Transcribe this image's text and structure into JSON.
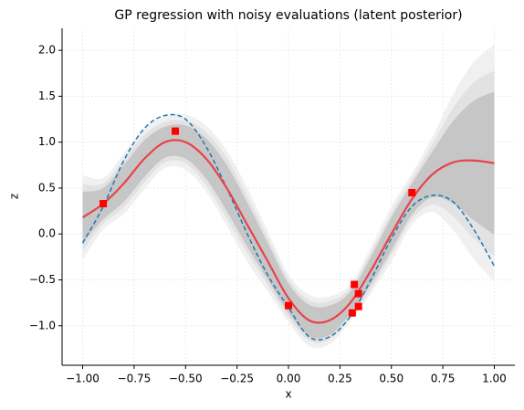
{
  "chart_data": {
    "type": "line",
    "title": "GP regression with noisy evaluations (latent posterior)",
    "xlabel": "x",
    "ylabel": "z",
    "xlim": [
      -1.1,
      1.1
    ],
    "ylim": [
      -1.43,
      2.24
    ],
    "xticks": [
      {
        "value": -1.0,
        "label": "−1.00"
      },
      {
        "value": -0.75,
        "label": "−0.75"
      },
      {
        "value": -0.5,
        "label": "−0.50"
      },
      {
        "value": -0.25,
        "label": "−0.25"
      },
      {
        "value": 0.0,
        "label": "0.00"
      },
      {
        "value": 0.25,
        "label": "0.25"
      },
      {
        "value": 0.5,
        "label": "0.50"
      },
      {
        "value": 0.75,
        "label": "0.75"
      },
      {
        "value": 1.0,
        "label": "1.00"
      }
    ],
    "yticks": [
      {
        "value": -1.0,
        "label": "−1.0"
      },
      {
        "value": -0.5,
        "label": "−0.5"
      },
      {
        "value": 0.0,
        "label": "0.0"
      },
      {
        "value": 0.5,
        "label": "0.5"
      },
      {
        "value": 1.0,
        "label": "1.0"
      },
      {
        "value": 1.5,
        "label": "1.5"
      },
      {
        "value": 2.0,
        "label": "2.0"
      }
    ],
    "grid": true,
    "x": [
      -1.0,
      -0.9,
      -0.8,
      -0.7,
      -0.6,
      -0.5,
      -0.4,
      -0.3,
      -0.2,
      -0.1,
      0.0,
      0.1,
      0.2,
      0.3,
      0.4,
      0.5,
      0.6,
      0.7,
      0.8,
      0.9,
      1.0
    ],
    "bands": [
      {
        "color": "#f0f0f0",
        "lower": [
          -0.28,
          0.05,
          0.22,
          0.49,
          0.72,
          0.7,
          0.46,
          0.09,
          -0.3,
          -0.63,
          -0.96,
          -1.22,
          -1.2,
          -0.95,
          -0.65,
          -0.3,
          0.1,
          0.24,
          0.04,
          -0.27,
          -0.52
        ],
        "upper": [
          0.64,
          0.61,
          0.88,
          1.15,
          1.28,
          1.3,
          1.18,
          0.91,
          0.5,
          0.03,
          -0.44,
          -0.66,
          -0.68,
          -0.55,
          -0.15,
          0.3,
          0.66,
          1.06,
          1.52,
          1.87,
          2.06
        ]
      },
      {
        "color": "#e2e2e2",
        "lower": [
          -0.18,
          0.11,
          0.29,
          0.56,
          0.78,
          0.77,
          0.53,
          0.17,
          -0.21,
          -0.56,
          -0.91,
          -1.16,
          -1.15,
          -0.91,
          -0.6,
          -0.23,
          0.16,
          0.32,
          0.19,
          -0.05,
          -0.24
        ],
        "upper": [
          0.54,
          0.55,
          0.81,
          1.08,
          1.22,
          1.23,
          1.11,
          0.83,
          0.41,
          -0.04,
          -0.49,
          -0.72,
          -0.73,
          -0.59,
          -0.2,
          0.23,
          0.6,
          0.98,
          1.37,
          1.65,
          1.78
        ]
      },
      {
        "color": "#c6c6c6",
        "lower": [
          -0.1,
          0.16,
          0.35,
          0.62,
          0.83,
          0.82,
          0.6,
          0.25,
          -0.14,
          -0.5,
          -0.86,
          -1.11,
          -1.1,
          -0.87,
          -0.55,
          -0.18,
          0.21,
          0.4,
          0.33,
          0.15,
          -0.01
        ],
        "upper": [
          0.46,
          0.5,
          0.75,
          1.02,
          1.17,
          1.18,
          1.04,
          0.75,
          0.34,
          -0.1,
          -0.54,
          -0.77,
          -0.78,
          -0.63,
          -0.25,
          0.18,
          0.55,
          0.9,
          1.23,
          1.45,
          1.55
        ]
      }
    ],
    "truth": {
      "color": "#1f77b4",
      "values": [
        -0.1,
        0.3,
        0.8,
        1.15,
        1.29,
        1.25,
        0.95,
        0.5,
        0.0,
        -0.45,
        -0.8,
        -1.12,
        -1.12,
        -0.9,
        -0.5,
        -0.05,
        0.3,
        0.42,
        0.35,
        0.05,
        -0.35
      ]
    },
    "mean": {
      "color": "#e8434a",
      "values": [
        0.18,
        0.33,
        0.55,
        0.82,
        1.0,
        1.0,
        0.82,
        0.5,
        0.1,
        -0.3,
        -0.7,
        -0.94,
        -0.94,
        -0.75,
        -0.4,
        0.0,
        0.38,
        0.65,
        0.78,
        0.8,
        0.77
      ]
    },
    "observations": {
      "color": "#ff0000",
      "x": [
        -0.9,
        -0.55,
        0.0,
        0.31,
        0.32,
        0.34,
        0.34,
        0.6
      ],
      "y": [
        0.33,
        1.12,
        -0.78,
        -0.86,
        -0.55,
        -0.65,
        -0.79,
        0.45
      ]
    }
  }
}
